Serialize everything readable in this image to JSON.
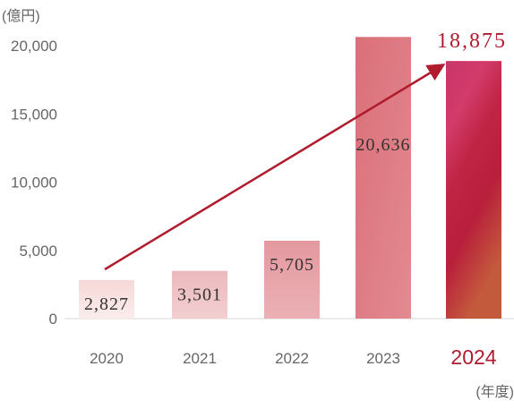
{
  "chart_data": {
    "type": "bar",
    "y_unit_label": "(億円)",
    "x_unit_label": "(年度)",
    "categories": [
      "2020",
      "2021",
      "2022",
      "2023",
      "2024"
    ],
    "values": [
      2827,
      3501,
      5705,
      20636,
      18875
    ],
    "value_labels": [
      "2,827",
      "3,501",
      "5,705",
      "20,636",
      "18,875"
    ],
    "yticks": [
      0,
      5000,
      10000,
      15000,
      20000
    ],
    "ytick_labels": [
      "0",
      "5,000",
      "10,000",
      "15,000",
      "20,000"
    ],
    "ylim": [
      0,
      20000
    ],
    "highlight_category": "2024",
    "grid": false,
    "trend_arrow": {
      "from": "2020",
      "to": "2024"
    },
    "colors": {
      "bars": [
        "#f7dedd",
        "#efc2c5",
        "#e6a1a7",
        "#dc7079",
        "#c52d53"
      ],
      "highlight": "#b01c2e",
      "arrow": "#b01c2e"
    }
  }
}
